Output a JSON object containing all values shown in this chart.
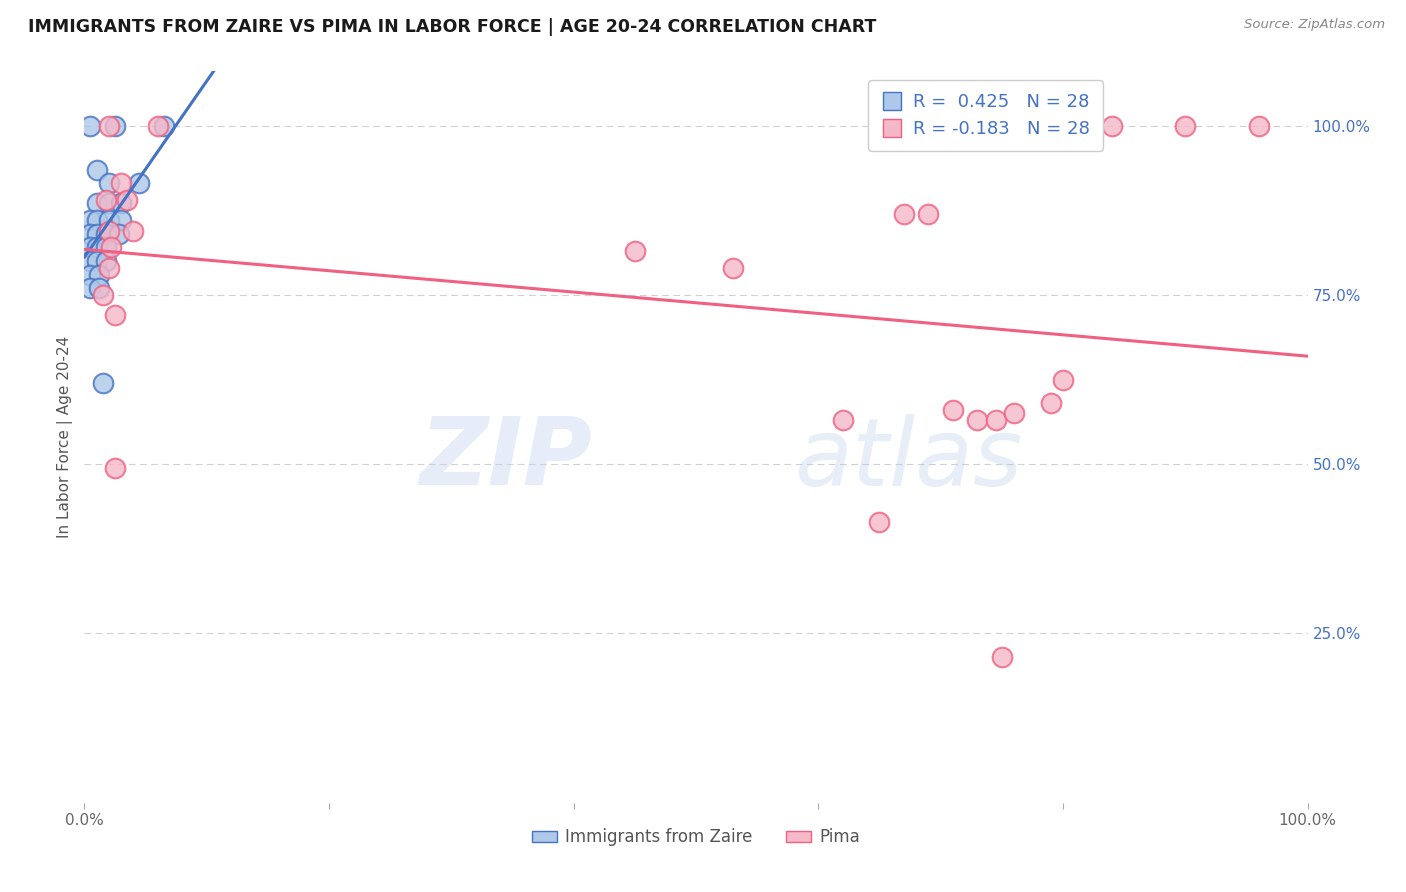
{
  "title": "IMMIGRANTS FROM ZAIRE VS PIMA IN LABOR FORCE | AGE 20-24 CORRELATION CHART",
  "source": "Source: ZipAtlas.com",
  "ylabel": "In Labor Force | Age 20-24",
  "r_blue": 0.425,
  "r_pink": -0.183,
  "n_blue": 28,
  "n_pink": 28,
  "legend_labels": [
    "Immigrants from Zaire",
    "Pima"
  ],
  "blue_color": "#adc8e8",
  "pink_color": "#f5b8c8",
  "blue_line_color": "#4472c4",
  "pink_line_color": "#f06080",
  "blue_scatter": [
    [
      0.005,
      1.0
    ],
    [
      0.025,
      1.0
    ],
    [
      0.065,
      1.0
    ],
    [
      0.01,
      0.935
    ],
    [
      0.02,
      0.915
    ],
    [
      0.045,
      0.915
    ],
    [
      0.01,
      0.885
    ],
    [
      0.02,
      0.885
    ],
    [
      0.03,
      0.885
    ],
    [
      0.005,
      0.86
    ],
    [
      0.01,
      0.86
    ],
    [
      0.02,
      0.86
    ],
    [
      0.03,
      0.86
    ],
    [
      0.005,
      0.84
    ],
    [
      0.01,
      0.84
    ],
    [
      0.018,
      0.84
    ],
    [
      0.028,
      0.84
    ],
    [
      0.005,
      0.82
    ],
    [
      0.01,
      0.82
    ],
    [
      0.018,
      0.82
    ],
    [
      0.005,
      0.8
    ],
    [
      0.01,
      0.8
    ],
    [
      0.018,
      0.8
    ],
    [
      0.005,
      0.78
    ],
    [
      0.012,
      0.78
    ],
    [
      0.005,
      0.76
    ],
    [
      0.012,
      0.76
    ],
    [
      0.015,
      0.62
    ]
  ],
  "pink_scatter": [
    [
      0.02,
      1.0
    ],
    [
      0.06,
      1.0
    ],
    [
      0.03,
      0.915
    ],
    [
      0.018,
      0.89
    ],
    [
      0.035,
      0.89
    ],
    [
      0.02,
      0.845
    ],
    [
      0.04,
      0.845
    ],
    [
      0.022,
      0.82
    ],
    [
      0.02,
      0.79
    ],
    [
      0.015,
      0.75
    ],
    [
      0.025,
      0.72
    ],
    [
      0.025,
      0.495
    ],
    [
      0.45,
      0.815
    ],
    [
      0.53,
      0.79
    ],
    [
      0.67,
      0.87
    ],
    [
      0.62,
      0.565
    ],
    [
      0.69,
      0.87
    ],
    [
      0.71,
      0.58
    ],
    [
      0.73,
      0.565
    ],
    [
      0.745,
      0.565
    ],
    [
      0.76,
      0.575
    ],
    [
      0.79,
      0.59
    ],
    [
      0.8,
      0.625
    ],
    [
      0.84,
      1.0
    ],
    [
      0.9,
      1.0
    ],
    [
      0.96,
      1.0
    ],
    [
      0.65,
      0.415
    ],
    [
      0.75,
      0.215
    ]
  ],
  "xlim": [
    0.0,
    1.0
  ],
  "ylim": [
    0.0,
    1.08
  ],
  "grid_color": "#d0d0d0",
  "watermark_zip": "ZIP",
  "watermark_atlas": "atlas",
  "background_color": "#ffffff"
}
